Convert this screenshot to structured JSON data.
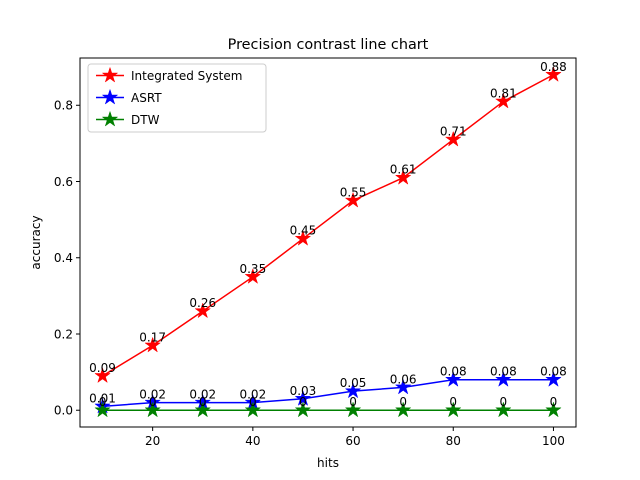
{
  "chart_data": {
    "type": "line",
    "title": "Precision contrast line chart",
    "xlabel": "hits",
    "ylabel": "accuracy",
    "x": [
      10,
      20,
      30,
      40,
      50,
      60,
      70,
      80,
      90,
      100
    ],
    "x_ticks": [
      "20",
      "40",
      "60",
      "80",
      "100"
    ],
    "x_tick_values": [
      20,
      40,
      60,
      80,
      100
    ],
    "y_ticks": [
      "0.0",
      "0.2",
      "0.4",
      "0.6",
      "0.8"
    ],
    "y_tick_values": [
      0.0,
      0.2,
      0.4,
      0.6,
      0.8
    ],
    "xlim": [
      5.5,
      104.5
    ],
    "ylim": [
      -0.044,
      0.924
    ],
    "grid": false,
    "legend_position": "top-left",
    "marker": "star",
    "series": [
      {
        "name": "Integrated System",
        "color": "#ff0000",
        "values": [
          0.09,
          0.17,
          0.26,
          0.35,
          0.45,
          0.55,
          0.61,
          0.71,
          0.81,
          0.88
        ],
        "labels": [
          "0.09",
          "0.17",
          "0.26",
          "0.35",
          "0.45",
          "0.55",
          "0.61",
          "0.71",
          "0.81",
          "0.88"
        ]
      },
      {
        "name": "ASRT",
        "color": "#0000ff",
        "values": [
          0.01,
          0.02,
          0.02,
          0.02,
          0.03,
          0.05,
          0.06,
          0.08,
          0.08,
          0.08
        ],
        "labels": [
          "0.01",
          "0.02",
          "0.02",
          "0.02",
          "0.03",
          "0.05",
          "0.06",
          "0.08",
          "0.08",
          "0.08"
        ]
      },
      {
        "name": "DTW",
        "color": "#008000",
        "values": [
          0,
          0,
          0,
          0,
          0,
          0,
          0,
          0,
          0,
          0
        ],
        "labels": [
          "0",
          "0",
          "0",
          "0",
          "0",
          "0",
          "0",
          "0",
          "0",
          "0"
        ]
      }
    ]
  }
}
